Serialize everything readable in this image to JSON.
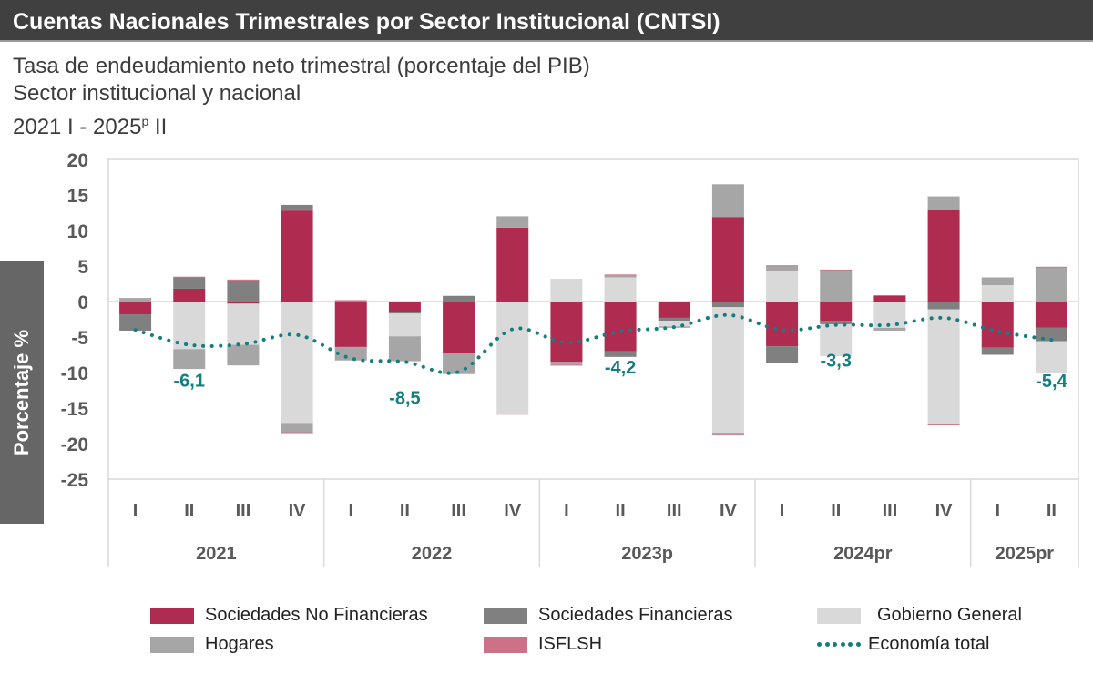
{
  "header": {
    "title": "Cuentas Nacionales Trimestrales por Sector Institucional (CNTSI)"
  },
  "subtitle": {
    "line1": "Tasa de endeudamiento neto trimestral (porcentaje del PIB)",
    "line2": "Sector institucional y nacional",
    "line3_main": "2021 I - 2025",
    "line3_sup": "p",
    "line3_end": " II"
  },
  "chart_data": {
    "type": "bar",
    "stacked": true,
    "title": "Tasa de endeudamiento neto trimestral (porcentaje del PIB)",
    "ylabel": "Porcentaje %",
    "ylim": [
      -25,
      20
    ],
    "yticks": [
      20,
      15,
      10,
      5,
      0,
      -5,
      -10,
      -15,
      -20,
      -25
    ],
    "categories": [
      "I",
      "II",
      "III",
      "IV",
      "I",
      "II",
      "III",
      "IV",
      "I",
      "II",
      "III",
      "IV",
      "I",
      "II",
      "III",
      "IV",
      "I",
      "II"
    ],
    "groups": [
      {
        "label": "2021",
        "count": 4
      },
      {
        "label": "2022",
        "count": 4
      },
      {
        "label": "2023p",
        "count": 4
      },
      {
        "label": "2024pr",
        "count": 4
      },
      {
        "label": "2025pr",
        "count": 2
      }
    ],
    "series": [
      {
        "name": "Sociedades No Financieras",
        "color": "#b02b50",
        "values": [
          -1.8,
          1.8,
          -0.3,
          12.8,
          -6.4,
          -1.5,
          -7.2,
          10.4,
          -8.5,
          -7.0,
          -2.3,
          11.9,
          -6.3,
          -2.7,
          0.8,
          12.9,
          -6.5,
          -3.7
        ]
      },
      {
        "name": "Sociedades Financieras",
        "color": "#808080",
        "values": [
          -2.3,
          1.6,
          3.0,
          0.8,
          0.0,
          -0.2,
          0.8,
          0.0,
          0.0,
          -0.8,
          -0.4,
          -0.8,
          -2.4,
          -0.5,
          0.0,
          -1.1,
          -1.0,
          -1.9
        ]
      },
      {
        "name": "Gobierno General",
        "color": "#d9d9d9",
        "values": [
          0.0,
          -6.7,
          -5.8,
          -17.1,
          0.0,
          -3.2,
          0.0,
          -15.8,
          3.2,
          3.4,
          -0.8,
          -17.7,
          4.3,
          -4.5,
          -3.7,
          -16.2,
          2.3,
          -4.5
        ]
      },
      {
        "name": "Hogares",
        "color": "#a6a6a6",
        "values": [
          0.5,
          -2.8,
          -2.9,
          -1.3,
          -1.9,
          -3.5,
          -2.8,
          1.6,
          -0.4,
          0.3,
          -0.2,
          4.6,
          0.7,
          4.4,
          -0.4,
          1.9,
          1.1,
          4.8
        ]
      },
      {
        "name": "ISFLSH",
        "color": "#cd7188",
        "values": [
          0.0,
          0.1,
          0.1,
          -0.1,
          0.2,
          0.0,
          -0.2,
          -0.1,
          -0.1,
          0.1,
          0.0,
          -0.2,
          0.1,
          0.1,
          0.1,
          -0.1,
          0.0,
          0.1
        ]
      }
    ],
    "line": {
      "name": "Economía total",
      "color": "#137d7f",
      "style": "dotted",
      "values": [
        -4.0,
        -6.1,
        -6.0,
        -4.7,
        -8.0,
        -8.5,
        -9.9,
        -3.9,
        -5.8,
        -4.2,
        -3.6,
        -1.9,
        -4.0,
        -3.3,
        -3.3,
        -2.3,
        -4.2,
        -5.4
      ]
    },
    "annotations": [
      {
        "index": 1,
        "text": "-6,1"
      },
      {
        "index": 5,
        "text": "-8,5"
      },
      {
        "index": 9,
        "text": "-4,2"
      },
      {
        "index": 13,
        "text": "-3,3"
      },
      {
        "index": 17,
        "text": "-5,4"
      }
    ],
    "grid": false,
    "legend_position": "bottom"
  },
  "legend": {
    "items": [
      {
        "label": "Sociedades No Financieras",
        "color": "#b02b50"
      },
      {
        "label": "Sociedades Financieras",
        "color": "#808080"
      },
      {
        "label": "Gobierno General",
        "color": "#d9d9d9"
      },
      {
        "label": "Hogares",
        "color": "#a6a6a6"
      },
      {
        "label": "ISFLSH",
        "color": "#cd7188"
      },
      {
        "label": "Economía total",
        "color": "#137d7f"
      }
    ]
  }
}
